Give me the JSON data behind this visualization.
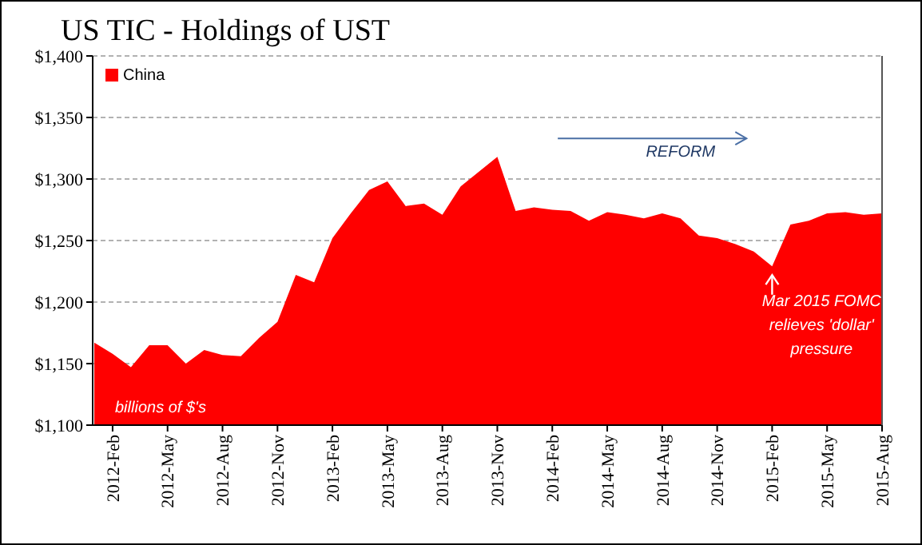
{
  "chart_data": {
    "type": "area",
    "title": "US TIC - Holdings of UST",
    "categories": [
      null,
      "2012-Feb",
      null,
      null,
      "2012-May",
      null,
      null,
      "2012-Aug",
      null,
      null,
      "2012-Nov",
      null,
      null,
      "2013-Feb",
      null,
      null,
      "2013-May",
      null,
      null,
      "2013-Aug",
      null,
      null,
      "2013-Nov",
      null,
      null,
      "2014-Feb",
      null,
      null,
      "2014-May",
      null,
      null,
      "2014-Aug",
      null,
      null,
      "2014-Nov",
      null,
      null,
      "2015-Feb",
      null,
      null,
      "2015-May",
      null,
      null,
      "2015-Aug"
    ],
    "series": [
      {
        "name": "China",
        "color": "#ff0000",
        "values": [
          1167,
          1158,
          1147,
          1165,
          1165,
          1150,
          1161,
          1157,
          1156,
          1171,
          1184,
          1222,
          1216,
          1252,
          1272,
          1291,
          1298,
          1278,
          1280,
          1271,
          1294,
          1306,
          1318,
          1274,
          1277,
          1275,
          1274,
          1266,
          1273,
          1271,
          1268,
          1272,
          1268,
          1254,
          1252,
          1247,
          1241,
          1229,
          1263,
          1266,
          1272,
          1273,
          1271,
          1272
        ]
      }
    ],
    "ylim": [
      1100,
      1400
    ],
    "yticks": [
      {
        "value": 1100,
        "label": "$1,100"
      },
      {
        "value": 1150,
        "label": "$1,150"
      },
      {
        "value": 1200,
        "label": "$1,200"
      },
      {
        "value": 1250,
        "label": "$1,250"
      },
      {
        "value": 1300,
        "label": "$1,300"
      },
      {
        "value": 1350,
        "label": "$1,350"
      },
      {
        "value": 1400,
        "label": "$1,400"
      }
    ],
    "grid": "y",
    "legend": "top left",
    "annotations": [
      "REFORM",
      "billions of $'s",
      "Mar 2015 FOMC\nrelieves 'dollar'\npressure"
    ]
  }
}
